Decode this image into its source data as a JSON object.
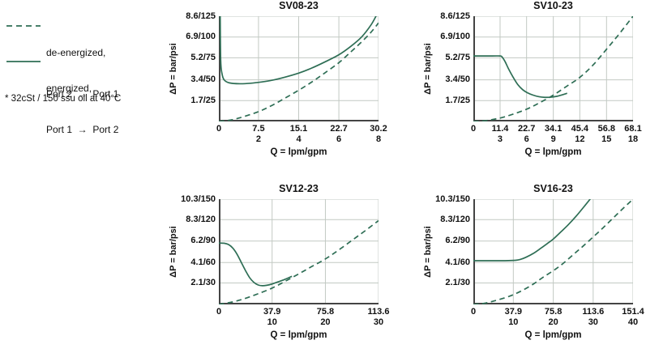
{
  "colors": {
    "curve": "#2e6e55",
    "grid": "#c2c9c3",
    "axis": "#444444",
    "text": "#111111"
  },
  "legend": {
    "items": [
      {
        "style": "dashed",
        "line1": "de-energized,",
        "line2": "Port 2  →  Port 1"
      },
      {
        "style": "solid",
        "line1": "energized,",
        "line2": "Port 1  →  Port 2"
      }
    ],
    "footnote": "* 32cSt / 150 ssu oil at 40°C"
  },
  "chart_data": [
    {
      "type": "line",
      "title": "SV08-23",
      "ylabel": "ΔP = bar/psi",
      "xlabel": "Q = lpm/gpm",
      "xlim": [
        0,
        30.2
      ],
      "ylim": [
        0,
        8.6
      ],
      "grid": true,
      "yticks": [
        {
          "value": 8.6,
          "label": "8.6/125"
        },
        {
          "value": 6.9,
          "label": "6.9/100"
        },
        {
          "value": 5.2,
          "label": "5.2/75"
        },
        {
          "value": 3.4,
          "label": "3.4/50"
        },
        {
          "value": 1.7,
          "label": "1.7/25"
        }
      ],
      "xticks": [
        {
          "value": 0,
          "lpm": "0",
          "gpm": ""
        },
        {
          "value": 7.5,
          "lpm": "7.5",
          "gpm": "2"
        },
        {
          "value": 15.1,
          "lpm": "15.1",
          "gpm": "4"
        },
        {
          "value": 22.7,
          "lpm": "22.7",
          "gpm": "6"
        },
        {
          "value": 30.2,
          "lpm": "30.2",
          "gpm": "8"
        }
      ],
      "series": [
        {
          "name": "energized",
          "style": "solid",
          "points": [
            [
              0.25,
              8.9
            ],
            [
              0.35,
              5.0
            ],
            [
              0.6,
              3.9
            ],
            [
              1,
              3.4
            ],
            [
              2,
              3.15
            ],
            [
              4,
              3.08
            ],
            [
              6,
              3.12
            ],
            [
              8,
              3.22
            ],
            [
              10,
              3.36
            ],
            [
              12.5,
              3.62
            ],
            [
              15.1,
              3.95
            ],
            [
              17.5,
              4.35
            ],
            [
              20,
              4.85
            ],
            [
              22.7,
              5.45
            ],
            [
              25,
              6.15
            ],
            [
              27,
              6.9
            ],
            [
              28.8,
              7.9
            ],
            [
              29.9,
              8.75
            ]
          ]
        },
        {
          "name": "de-energized",
          "style": "dashed",
          "points": [
            [
              0,
              0
            ],
            [
              2,
              0.1
            ],
            [
              4,
              0.3
            ],
            [
              7.5,
              0.8
            ],
            [
              10,
              1.3
            ],
            [
              12.5,
              1.9
            ],
            [
              15.1,
              2.55
            ],
            [
              17.5,
              3.2
            ],
            [
              20,
              3.95
            ],
            [
              22.7,
              4.8
            ],
            [
              25,
              5.7
            ],
            [
              27,
              6.5
            ],
            [
              28.8,
              7.3
            ],
            [
              30.2,
              8.05
            ]
          ]
        }
      ]
    },
    {
      "type": "line",
      "title": "SV10-23",
      "ylabel": "ΔP = bar/psi",
      "xlabel": "Q = lpm/gpm",
      "xlim": [
        0,
        68.1
      ],
      "ylim": [
        0,
        8.6
      ],
      "grid": true,
      "yticks": [
        {
          "value": 8.6,
          "label": "8.6/125"
        },
        {
          "value": 6.9,
          "label": "6.9/100"
        },
        {
          "value": 5.2,
          "label": "5.2/75"
        },
        {
          "value": 3.4,
          "label": "3.4/50"
        },
        {
          "value": 1.7,
          "label": "1.7/25"
        }
      ],
      "xticks": [
        {
          "value": 0,
          "lpm": "0",
          "gpm": ""
        },
        {
          "value": 11.4,
          "lpm": "11.4",
          "gpm": "3"
        },
        {
          "value": 22.7,
          "lpm": "22.7",
          "gpm": "6"
        },
        {
          "value": 34.1,
          "lpm": "34.1",
          "gpm": "9"
        },
        {
          "value": 45.4,
          "lpm": "45.4",
          "gpm": "12"
        },
        {
          "value": 56.8,
          "lpm": "56.8",
          "gpm": "15"
        },
        {
          "value": 68.1,
          "lpm": "68.1",
          "gpm": "18"
        }
      ],
      "series": [
        {
          "name": "energized",
          "style": "solid",
          "points": [
            [
              0,
              5.35
            ],
            [
              8,
              5.35
            ],
            [
              11.4,
              5.35
            ],
            [
              12.2,
              5.28
            ],
            [
              13.5,
              4.9
            ],
            [
              15,
              4.3
            ],
            [
              17,
              3.6
            ],
            [
              19,
              3.0
            ],
            [
              21,
              2.6
            ],
            [
              23,
              2.35
            ],
            [
              25.5,
              2.15
            ],
            [
              28,
              2.02
            ],
            [
              30.5,
              1.97
            ],
            [
              33,
              1.98
            ],
            [
              35.5,
              2.05
            ],
            [
              38,
              2.18
            ],
            [
              40,
              2.3
            ]
          ]
        },
        {
          "name": "de-energized",
          "style": "dashed",
          "points": [
            [
              0,
              0
            ],
            [
              5,
              0.06
            ],
            [
              11.4,
              0.28
            ],
            [
              17,
              0.6
            ],
            [
              22.7,
              1.0
            ],
            [
              28,
              1.5
            ],
            [
              34.1,
              2.15
            ],
            [
              40,
              2.9
            ],
            [
              45.4,
              3.6
            ],
            [
              51,
              4.6
            ],
            [
              56.8,
              5.9
            ],
            [
              62,
              7.1
            ],
            [
              68.1,
              8.6
            ]
          ]
        }
      ]
    },
    {
      "type": "line",
      "title": "SV12-23",
      "ylabel": "ΔP = bar/psi",
      "xlabel": "Q = lpm/gpm",
      "xlim": [
        0,
        113.6
      ],
      "ylim": [
        0,
        10.3
      ],
      "grid": true,
      "yticks": [
        {
          "value": 10.3,
          "label": "10.3/150"
        },
        {
          "value": 8.3,
          "label": "8.3/120"
        },
        {
          "value": 6.2,
          "label": "6.2/90"
        },
        {
          "value": 4.1,
          "label": "4.1/60"
        },
        {
          "value": 2.1,
          "label": "2.1/30"
        }
      ],
      "xticks": [
        {
          "value": 0,
          "lpm": "0",
          "gpm": ""
        },
        {
          "value": 37.9,
          "lpm": "37.9",
          "gpm": "10"
        },
        {
          "value": 75.8,
          "lpm": "75.8",
          "gpm": "20"
        },
        {
          "value": 113.6,
          "lpm": "113.6",
          "gpm": "30"
        }
      ],
      "series": [
        {
          "name": "energized",
          "style": "solid",
          "points": [
            [
              0,
              6.0
            ],
            [
              4,
              5.98
            ],
            [
              7,
              5.85
            ],
            [
              10,
              5.5
            ],
            [
              13,
              4.9
            ],
            [
              16,
              4.1
            ],
            [
              19,
              3.3
            ],
            [
              22,
              2.6
            ],
            [
              25,
              2.15
            ],
            [
              28,
              1.9
            ],
            [
              31,
              1.83
            ],
            [
              34,
              1.87
            ],
            [
              37.9,
              2.0
            ],
            [
              42,
              2.2
            ],
            [
              47,
              2.45
            ],
            [
              52,
              2.75
            ]
          ]
        },
        {
          "name": "de-energized",
          "style": "dashed",
          "points": [
            [
              0,
              0
            ],
            [
              10,
              0.25
            ],
            [
              19,
              0.6
            ],
            [
              28,
              1.05
            ],
            [
              37.9,
              1.6
            ],
            [
              47,
              2.25
            ],
            [
              57,
              3.0
            ],
            [
              66,
              3.7
            ],
            [
              75.8,
              4.45
            ],
            [
              85,
              5.3
            ],
            [
              95,
              6.3
            ],
            [
              104,
              7.2
            ],
            [
              113.6,
              8.2
            ]
          ]
        }
      ]
    },
    {
      "type": "line",
      "title": "SV16-23",
      "ylabel": "ΔP = bar/psi",
      "xlabel": "Q = lpm/gpm",
      "xlim": [
        0,
        151.4
      ],
      "ylim": [
        0,
        10.3
      ],
      "grid": true,
      "yticks": [
        {
          "value": 10.3,
          "label": "10.3/150"
        },
        {
          "value": 8.3,
          "label": "8.3/120"
        },
        {
          "value": 6.2,
          "label": "6.2/90"
        },
        {
          "value": 4.1,
          "label": "4.1/60"
        },
        {
          "value": 2.1,
          "label": "2.1/30"
        }
      ],
      "xticks": [
        {
          "value": 0,
          "lpm": "0",
          "gpm": ""
        },
        {
          "value": 37.9,
          "lpm": "37.9",
          "gpm": "10"
        },
        {
          "value": 75.8,
          "lpm": "75.8",
          "gpm": "20"
        },
        {
          "value": 113.6,
          "lpm": "113.6",
          "gpm": "30"
        },
        {
          "value": 151.4,
          "lpm": "151.4",
          "gpm": "40"
        }
      ],
      "series": [
        {
          "name": "energized",
          "style": "solid",
          "points": [
            [
              0,
              4.28
            ],
            [
              15,
              4.28
            ],
            [
              30,
              4.28
            ],
            [
              40,
              4.32
            ],
            [
              45,
              4.42
            ],
            [
              50,
              4.62
            ],
            [
              57,
              5.0
            ],
            [
              64,
              5.5
            ],
            [
              70,
              5.95
            ],
            [
              75.8,
              6.4
            ],
            [
              83,
              7.1
            ],
            [
              90,
              7.8
            ],
            [
              98,
              8.7
            ],
            [
              106,
              9.7
            ],
            [
              113,
              10.6
            ]
          ]
        },
        {
          "name": "de-energized",
          "style": "dashed",
          "points": [
            [
              0,
              0
            ],
            [
              10,
              0.1
            ],
            [
              20,
              0.35
            ],
            [
              30,
              0.65
            ],
            [
              37.9,
              0.95
            ],
            [
              47,
              1.4
            ],
            [
              57,
              2.0
            ],
            [
              66,
              2.65
            ],
            [
              75.8,
              3.3
            ],
            [
              85,
              4.0
            ],
            [
              95,
              4.9
            ],
            [
              104,
              5.7
            ],
            [
              113.6,
              6.6
            ],
            [
              123,
              7.5
            ],
            [
              132,
              8.4
            ],
            [
              141,
              9.3
            ],
            [
              151.4,
              10.3
            ]
          ]
        }
      ]
    }
  ]
}
